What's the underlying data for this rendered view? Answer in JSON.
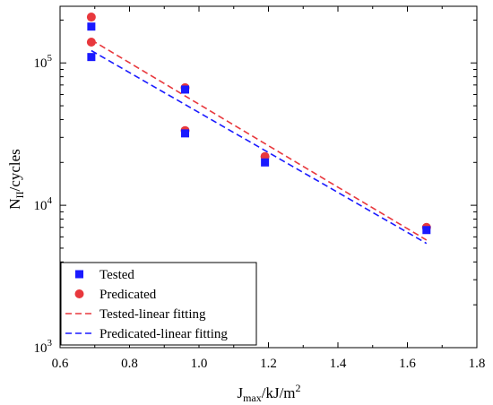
{
  "chart_data": {
    "type": "scatter",
    "xlabel": "J",
    "xlabel_sub": "max",
    "xlabel_unit": "/kJ/m",
    "xlabel_sup": "2",
    "ylabel": "N",
    "ylabel_sub": "II",
    "ylabel_unit": "/cycles",
    "xlim": [
      0.6,
      1.8
    ],
    "ylim": [
      1000,
      250000
    ],
    "y_scale": "log",
    "x_ticks": [
      "0.6",
      "0.8",
      "1.0",
      "1.2",
      "1.4",
      "1.6",
      "1.8"
    ],
    "y_ticks": [
      {
        "base": "10",
        "exp": "3"
      },
      {
        "base": "10",
        "exp": "4"
      },
      {
        "base": "10",
        "exp": "5"
      }
    ],
    "legend_position": "bottom-left",
    "colors": {
      "tested": "#1a1aff",
      "predicated": "#e8383d",
      "tested_fit": "#e8383d",
      "predicated_fit": "#1a1aff"
    },
    "series": [
      {
        "name": "Tested",
        "marker": "square",
        "points": [
          {
            "x": 0.69,
            "y": 180000
          },
          {
            "x": 0.69,
            "y": 110000
          },
          {
            "x": 0.96,
            "y": 65000
          },
          {
            "x": 0.96,
            "y": 32000
          },
          {
            "x": 1.19,
            "y": 20000
          },
          {
            "x": 1.655,
            "y": 6700
          }
        ]
      },
      {
        "name": "Predicated",
        "marker": "circle",
        "points": [
          {
            "x": 0.69,
            "y": 210000
          },
          {
            "x": 0.69,
            "y": 140000
          },
          {
            "x": 0.96,
            "y": 67000
          },
          {
            "x": 0.96,
            "y": 33500
          },
          {
            "x": 1.19,
            "y": 22000
          },
          {
            "x": 1.655,
            "y": 7000
          }
        ]
      },
      {
        "name": "Tested-linear fitting",
        "style": "dashed",
        "points": [
          {
            "x": 0.69,
            "y": 145000
          },
          {
            "x": 1.655,
            "y": 5700
          }
        ]
      },
      {
        "name": "Predicated-linear fitting",
        "style": "dashed",
        "points": [
          {
            "x": 0.69,
            "y": 122000
          },
          {
            "x": 1.655,
            "y": 5400
          }
        ]
      }
    ]
  }
}
